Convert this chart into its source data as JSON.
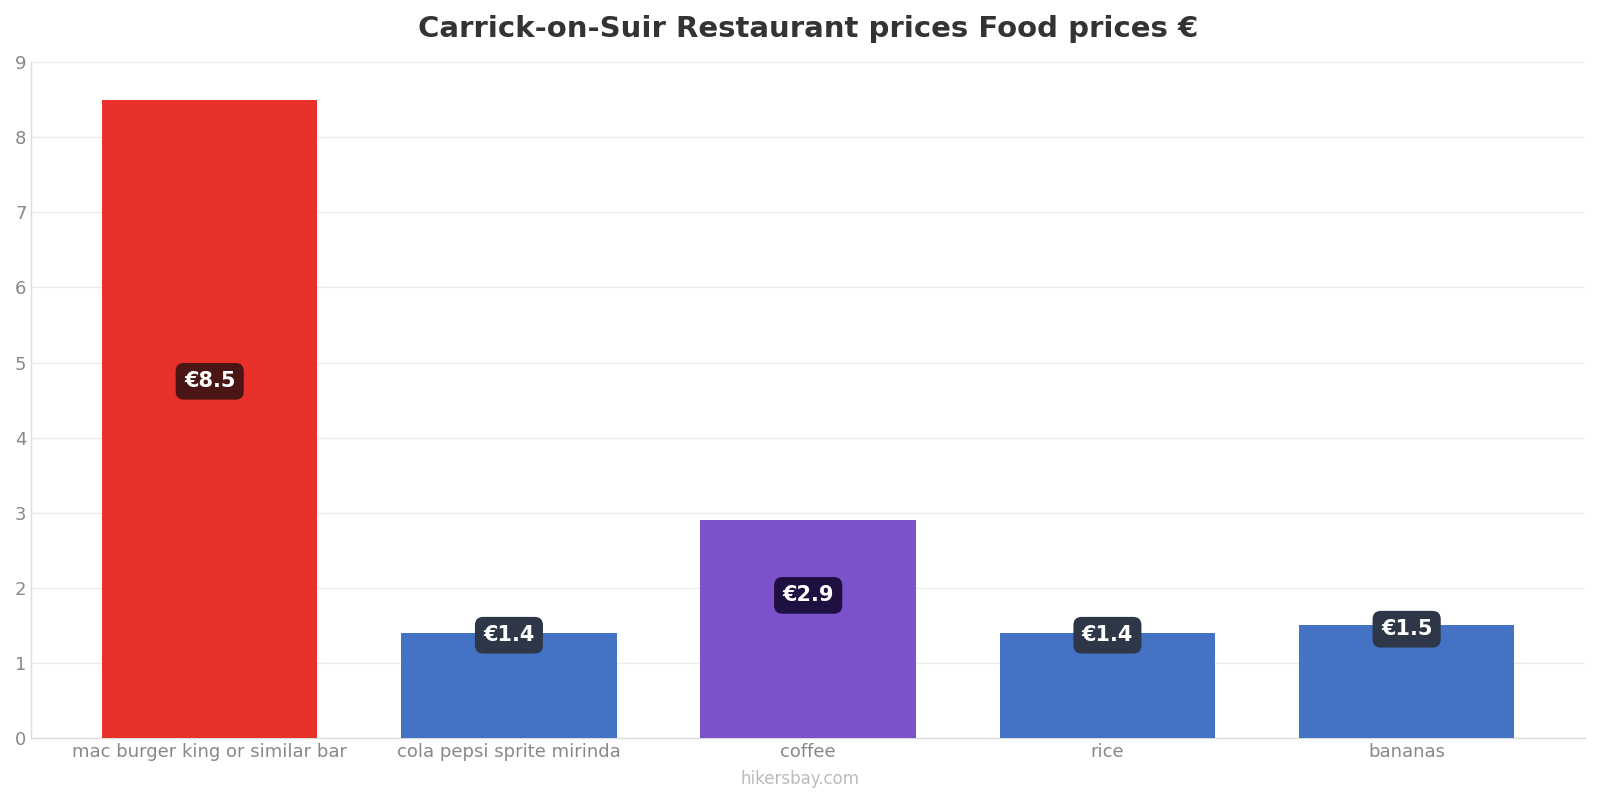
{
  "title": "Carrick-on-Suir Restaurant prices Food prices €",
  "categories": [
    "mac burger king or similar bar",
    "cola pepsi sprite mirinda",
    "coffee",
    "rice",
    "bananas"
  ],
  "values": [
    8.5,
    1.4,
    2.9,
    1.4,
    1.5
  ],
  "bar_colors": [
    "#e8312a",
    "#4472c4",
    "#7b52cc",
    "#4472c4",
    "#4472c4"
  ],
  "label_texts": [
    "€8.5",
    "€1.4",
    "€2.9",
    "€1.4",
    "€1.5"
  ],
  "ylim": [
    0,
    9
  ],
  "yticks": [
    0,
    1,
    2,
    3,
    4,
    5,
    6,
    7,
    8,
    9
  ],
  "background_color": "#ffffff",
  "grid_color": "#ebebeb",
  "title_fontsize": 21,
  "tick_fontsize": 13,
  "label_box_dark_color": "#2d3748",
  "label_box_red_color": "#4a1515",
  "label_box_purple_color": "#1e1040",
  "watermark": "hikersbay.com",
  "bar_width": 0.72
}
